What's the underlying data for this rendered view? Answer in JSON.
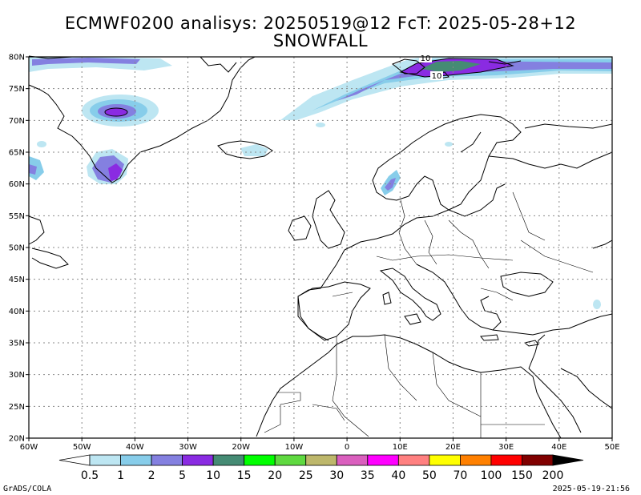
{
  "title_line1": "ECMWF0200 analisys: 20250519@12 FcT: 2025-05-28+12",
  "title_line2": "SNOWFALL",
  "lon_labels": [
    "60W",
    "50W",
    "40W",
    "30W",
    "20W",
    "10W",
    "0",
    "10E",
    "20E",
    "30E",
    "40E",
    "50E"
  ],
  "lat_labels": [
    "80N",
    "75N",
    "70N",
    "65N",
    "60N",
    "55N",
    "50N",
    "45N",
    "40N",
    "35N",
    "30N",
    "25N",
    "20N"
  ],
  "contour_labels": [
    "10",
    "10"
  ],
  "legend": {
    "levels": [
      "0.5",
      "1",
      "2",
      "5",
      "10",
      "15",
      "20",
      "25",
      "30",
      "35",
      "40",
      "50",
      "70",
      "100",
      "150",
      "200"
    ],
    "colors": [
      "#ffffff",
      "#bde6f2",
      "#87cdea",
      "#8480e0",
      "#8a2be2",
      "#458b74",
      "#00ff00",
      "#5fd940",
      "#bdb76b",
      "#da5fbe",
      "#ff00ff",
      "#ff8080",
      "#ffff00",
      "#ff8000",
      "#ff0000",
      "#800000",
      "#000000"
    ]
  },
  "footer_left": "GrADS/COLA",
  "footer_right": "2025-05-19-21:56"
}
